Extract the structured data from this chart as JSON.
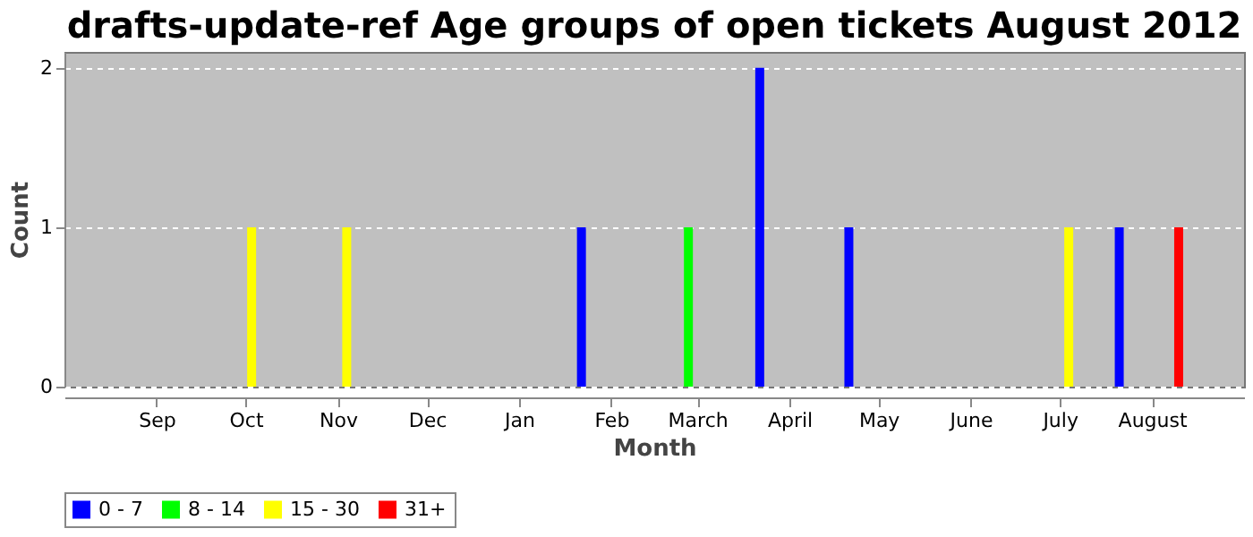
{
  "chart_data": {
    "type": "bar",
    "title": "drafts-update-ref Age groups of open tickets August 2012",
    "xlabel": "Month",
    "ylabel": "Count",
    "xlim": [
      "2011-08-01",
      "2012-09-01"
    ],
    "xticks": [
      {
        "value": "2011-09-01",
        "label": "Sep"
      },
      {
        "value": "2011-10-01",
        "label": "Oct"
      },
      {
        "value": "2011-11-01",
        "label": "Nov"
      },
      {
        "value": "2011-12-01",
        "label": "Dec"
      },
      {
        "value": "2012-01-01",
        "label": "Jan"
      },
      {
        "value": "2012-02-01",
        "label": "Feb"
      },
      {
        "value": "2012-03-01",
        "label": "March"
      },
      {
        "value": "2012-04-01",
        "label": "April"
      },
      {
        "value": "2012-05-01",
        "label": "May"
      },
      {
        "value": "2012-06-01",
        "label": "June"
      },
      {
        "value": "2012-07-01",
        "label": "July"
      },
      {
        "value": "2012-08-01",
        "label": "August"
      }
    ],
    "ylim": [
      0,
      2.1
    ],
    "yticks": [
      0,
      1,
      2
    ],
    "grid": "y",
    "legend": "bottom",
    "series": [
      {
        "name": "0 - 7",
        "color": "#0000ff",
        "x": [
          "2012-01-22",
          "2012-03-22",
          "2012-04-21",
          "2012-07-21"
        ],
        "values": [
          1,
          2,
          1,
          1
        ]
      },
      {
        "name": "8 - 14",
        "color": "#00ff00",
        "x": [
          "2012-02-27"
        ],
        "values": [
          1
        ]
      },
      {
        "name": "15 - 30",
        "color": "#ffff00",
        "x": [
          "2011-10-03",
          "2011-11-04",
          "2012-07-04"
        ],
        "values": [
          1,
          1,
          1
        ]
      },
      {
        "name": "31+",
        "color": "#ff0000",
        "x": [
          "2012-08-10"
        ],
        "values": [
          1
        ]
      }
    ]
  }
}
